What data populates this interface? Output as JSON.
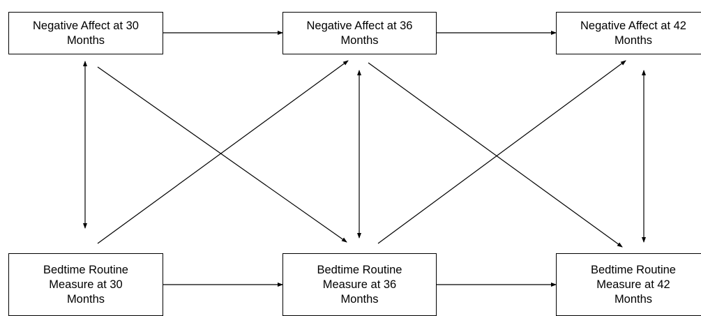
{
  "nodes": {
    "na30": {
      "line1": "Negative Affect at 30",
      "line2": "Months"
    },
    "na36": {
      "line1": "Negative Affect at 36",
      "line2": "Months"
    },
    "na42": {
      "line1": "Negative Affect at 42",
      "line2": "Months"
    },
    "br30": {
      "line1": "Bedtime Routine",
      "line2": "Measure at 30",
      "line3": "Months"
    },
    "br36": {
      "line1": "Bedtime Routine",
      "line2": "Measure at 36",
      "line3": "Months"
    },
    "br42": {
      "line1": "Bedtime Routine",
      "line2": "Measure at 42",
      "line3": "Months"
    }
  },
  "edges": [
    {
      "from": "na30",
      "to": "na36",
      "kind": "directed"
    },
    {
      "from": "na36",
      "to": "na42",
      "kind": "directed"
    },
    {
      "from": "br30",
      "to": "br36",
      "kind": "directed"
    },
    {
      "from": "br36",
      "to": "br42",
      "kind": "directed"
    },
    {
      "from": "na30",
      "to": "br30",
      "kind": "bidirectional"
    },
    {
      "from": "na36",
      "to": "br36",
      "kind": "bidirectional"
    },
    {
      "from": "na42",
      "to": "br42",
      "kind": "bidirectional"
    },
    {
      "from": "na30",
      "to": "br36",
      "kind": "directed"
    },
    {
      "from": "br30",
      "to": "na36",
      "kind": "directed"
    },
    {
      "from": "na36",
      "to": "br42",
      "kind": "directed"
    },
    {
      "from": "br36",
      "to": "na42",
      "kind": "directed"
    }
  ],
  "colors": {
    "line": "#000000",
    "box_border": "#000000",
    "background": "#ffffff"
  }
}
